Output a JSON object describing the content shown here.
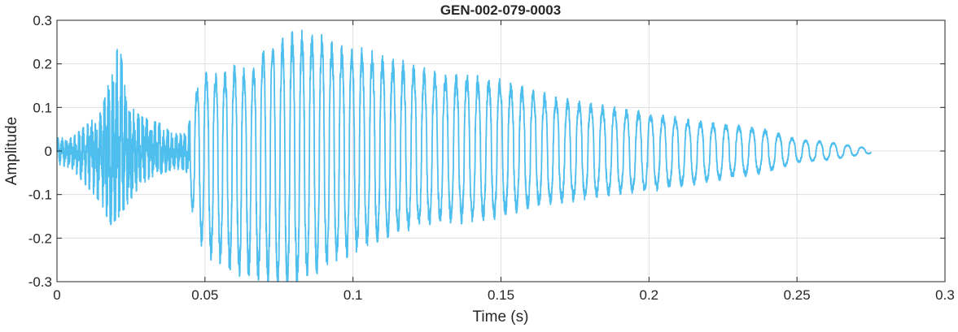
{
  "chart_data": {
    "type": "line",
    "title": "GEN-002-079-0003",
    "xlabel": "Time (s)",
    "ylabel": "Amplitude",
    "xlim": [
      0,
      0.3
    ],
    "ylim": [
      -0.3,
      0.3
    ],
    "xticks": [
      0,
      0.05,
      0.1,
      0.15,
      0.2,
      0.25,
      0.3
    ],
    "xtick_labels": [
      "0",
      "0.05",
      "0.1",
      "0.15",
      "0.2",
      "0.25",
      "0.3"
    ],
    "yticks": [
      -0.3,
      -0.2,
      -0.1,
      0,
      0.1,
      0.2,
      0.3
    ],
    "ytick_labels": [
      "-0.3",
      "-0.2",
      "-0.1",
      "0",
      "0.1",
      "0.2",
      "0.3"
    ],
    "grid": true,
    "series": [
      {
        "color": "#4DBEEE",
        "duration": 0.275,
        "envelope": {
          "t": [
            0,
            0.005,
            0.01,
            0.015,
            0.018,
            0.021,
            0.024,
            0.028,
            0.032,
            0.036,
            0.04,
            0.044,
            0.046,
            0.05,
            0.055,
            0.06,
            0.065,
            0.07,
            0.075,
            0.08,
            0.085,
            0.09,
            0.095,
            0.1,
            0.105,
            0.11,
            0.115,
            0.12,
            0.125,
            0.13,
            0.14,
            0.15,
            0.16,
            0.17,
            0.18,
            0.19,
            0.2,
            0.21,
            0.22,
            0.23,
            0.24,
            0.25,
            0.26,
            0.27,
            0.275
          ],
          "max": [
            0.03,
            0.03,
            0.06,
            0.09,
            0.17,
            0.25,
            0.11,
            0.08,
            0.07,
            0.06,
            0.04,
            0.04,
            0.12,
            0.17,
            0.16,
            0.18,
            0.17,
            0.22,
            0.23,
            0.25,
            0.25,
            0.24,
            0.22,
            0.22,
            0.21,
            0.2,
            0.19,
            0.18,
            0.17,
            0.16,
            0.16,
            0.15,
            0.13,
            0.11,
            0.1,
            0.09,
            0.08,
            0.07,
            0.06,
            0.055,
            0.045,
            0.025,
            0.02,
            0.01,
            0.005
          ],
          "min": [
            -0.03,
            -0.04,
            -0.08,
            -0.12,
            -0.17,
            -0.15,
            -0.12,
            -0.08,
            -0.06,
            -0.05,
            -0.04,
            -0.05,
            -0.14,
            -0.22,
            -0.24,
            -0.26,
            -0.27,
            -0.28,
            -0.29,
            -0.29,
            -0.27,
            -0.25,
            -0.23,
            -0.22,
            -0.2,
            -0.19,
            -0.18,
            -0.17,
            -0.16,
            -0.15,
            -0.15,
            -0.14,
            -0.12,
            -0.11,
            -0.1,
            -0.09,
            -0.085,
            -0.075,
            -0.065,
            -0.055,
            -0.045,
            -0.025,
            -0.02,
            -0.01,
            -0.005
          ]
        }
      }
    ]
  }
}
